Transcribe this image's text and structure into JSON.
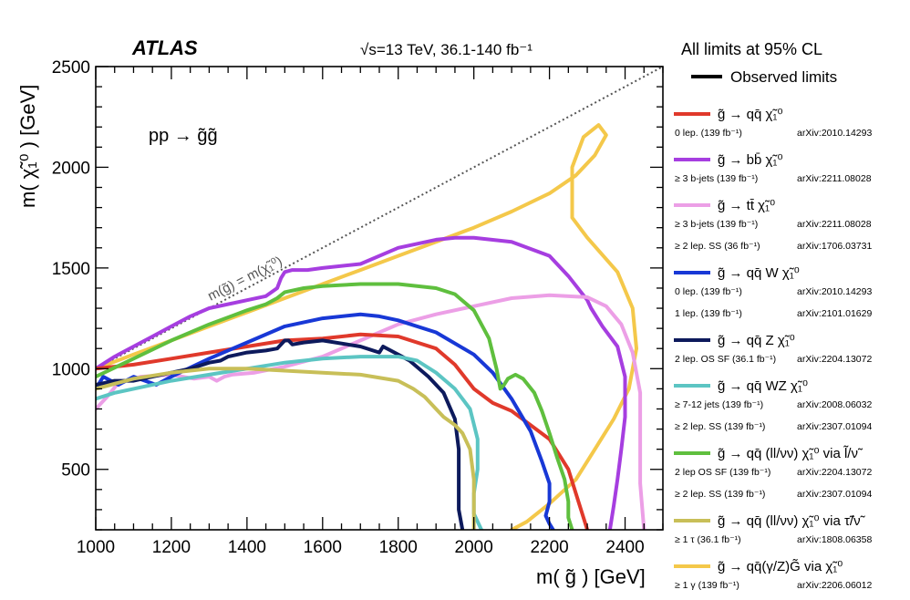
{
  "chart_data": {
    "type": "line",
    "title": "ATLAS",
    "subtitle": "√s=13 TeV, 36.1-140 fb⁻¹",
    "cl_note": "All limits at 95% CL",
    "observed_label": "Observed limits",
    "process_label": "pp → g̃g̃",
    "diagonal_label": "m(g̃) = m(χ̃₁⁰)",
    "xlabel": "m( g̃ ) [GeV]",
    "ylabel": "m( χ̃₁⁰ ) [GeV]",
    "xlim": [
      1000,
      2500
    ],
    "ylim": [
      200,
      2500
    ],
    "x_ticks": [
      1000,
      1200,
      1400,
      1600,
      1800,
      2000,
      2200,
      2400
    ],
    "y_ticks": [
      500,
      1000,
      1500,
      2000,
      2500
    ],
    "legend": [
      {
        "name": "g̃ → qq̄ χ̃₁⁰",
        "color": "#e0392b",
        "notes": [
          {
            "left": "0 lep. (139 fb⁻¹)",
            "right": "arXiv:2010.14293"
          }
        ]
      },
      {
        "name": "g̃ → bb̄ χ̃₁⁰",
        "color": "#a63ee0",
        "notes": [
          {
            "left": "≥ 3 b-jets (139 fb⁻¹)",
            "right": "arXiv:2211.08028"
          }
        ]
      },
      {
        "name": "g̃ → tt̄ χ̃₁⁰",
        "color": "#ec9fe6",
        "notes": [
          {
            "left": "≥ 3 b-jets (139 fb⁻¹)",
            "right": "arXiv:2211.08028"
          },
          {
            "left": "≥ 2 lep. SS (36 fb⁻¹)",
            "right": "arXiv:1706.03731"
          }
        ]
      },
      {
        "name": "g̃ → qq̄ W χ̃₁⁰",
        "color": "#1838d6",
        "notes": [
          {
            "left": "0 lep. (139 fb⁻¹)",
            "right": "arXiv:2010.14293"
          },
          {
            "left": "1 lep. (139 fb⁻¹)",
            "right": "arXiv:2101.01629"
          }
        ]
      },
      {
        "name": "g̃ → qq̄ Z χ̃₁⁰",
        "color": "#0d1a5c",
        "notes": [
          {
            "left": "2 lep. OS SF (36.1 fb⁻¹)",
            "right": "arXiv:2204.13072"
          }
        ]
      },
      {
        "name": "g̃ → qq̄ WZ χ̃₁⁰",
        "color": "#5cc5c3",
        "notes": [
          {
            "left": "≥ 7-12 jets (139 fb⁻¹)",
            "right": "arXiv:2008.06032"
          },
          {
            "left": "≥ 2 lep. SS (139 fb⁻¹)",
            "right": "arXiv:2307.01094"
          }
        ]
      },
      {
        "name": "g̃ → qq̄ (ll/νν) χ̃₁⁰ via l̃/ν̃",
        "color": "#5fbf3e",
        "notes": [
          {
            "left": "2 lep OS SF (139 fb⁻¹)",
            "right": "arXiv:2204.13072"
          },
          {
            "left": "≥ 2 lep. SS (139 fb⁻¹)",
            "right": "arXiv:2307.01094"
          }
        ]
      },
      {
        "name": "g̃ → qq̄ (ll/νν) χ̃₁⁰ via τ̃/ν̃",
        "color": "#c8bf58",
        "notes": [
          {
            "left": "≥ 1 τ (36.1 fb⁻¹)",
            "right": "arXiv:1808.06358"
          }
        ]
      },
      {
        "name": "g̃ → qq̄(γ/Z)G̃ via χ̃₁⁰",
        "color": "#f4c84a",
        "notes": [
          {
            "left": "≥ 1 γ (139 fb⁻¹)",
            "right": "arXiv:2206.06012"
          }
        ]
      }
    ],
    "series": [
      {
        "name": "yellow",
        "color": "#f4c84a",
        "x": [
          1000,
          1100,
          1200,
          1300,
          1400,
          1500,
          1600,
          1700,
          1800,
          1900,
          2000,
          2100,
          2200,
          2270,
          2320,
          2350,
          2330,
          2290,
          2260,
          2260,
          2300,
          2380,
          2420,
          2430,
          2410,
          2370,
          2320,
          2270,
          2200,
          2140,
          2100
        ],
        "y": [
          1000,
          1070,
          1140,
          1210,
          1280,
          1350,
          1420,
          1490,
          1560,
          1630,
          1700,
          1780,
          1870,
          1960,
          2060,
          2160,
          2210,
          2150,
          2000,
          1750,
          1650,
          1480,
          1300,
          1100,
          900,
          750,
          600,
          450,
          330,
          240,
          200
        ]
      },
      {
        "name": "purple",
        "color": "#a63ee0",
        "x": [
          1000,
          1050,
          1100,
          1150,
          1200,
          1250,
          1300,
          1400,
          1450,
          1480,
          1490,
          1500,
          1520,
          1560,
          1600,
          1700,
          1800,
          1900,
          1950,
          2000,
          2100,
          2200,
          2250,
          2300,
          2310,
          2340,
          2380,
          2400,
          2400,
          2390,
          2380,
          2370,
          2360
        ],
        "y": [
          1000,
          1060,
          1110,
          1160,
          1210,
          1260,
          1300,
          1340,
          1360,
          1400,
          1450,
          1480,
          1490,
          1490,
          1500,
          1520,
          1600,
          1640,
          1650,
          1650,
          1630,
          1560,
          1460,
          1340,
          1300,
          1210,
          1110,
          960,
          760,
          600,
          450,
          320,
          200
        ]
      },
      {
        "name": "pink",
        "color": "#ec9fe6",
        "x": [
          1000,
          1030,
          1060,
          1120,
          1200,
          1260,
          1300,
          1320,
          1340,
          1360,
          1420,
          1500,
          1600,
          1700,
          1800,
          1900,
          2000,
          2100,
          2200,
          2300,
          2350,
          2390,
          2420,
          2440,
          2440,
          2440,
          2450
        ],
        "y": [
          800,
          860,
          930,
          960,
          970,
          950,
          960,
          940,
          960,
          970,
          980,
          1010,
          1060,
          1140,
          1220,
          1270,
          1310,
          1350,
          1365,
          1355,
          1310,
          1220,
          1080,
          880,
          650,
          430,
          200
        ]
      },
      {
        "name": "red",
        "color": "#e0392b",
        "x": [
          1000,
          1100,
          1200,
          1300,
          1400,
          1500,
          1600,
          1700,
          1800,
          1900,
          1950,
          2000,
          2050,
          2100,
          2200,
          2250,
          2300
        ],
        "y": [
          1000,
          1020,
          1050,
          1080,
          1110,
          1140,
          1150,
          1170,
          1160,
          1100,
          1020,
          900,
          830,
          790,
          650,
          500,
          200
        ]
      },
      {
        "name": "blue",
        "color": "#1838d6",
        "x": [
          1000,
          1020,
          1060,
          1100,
          1160,
          1200,
          1300,
          1400,
          1500,
          1600,
          1700,
          1750,
          1800,
          1900,
          2000,
          2050,
          2100,
          2150,
          2180,
          2200,
          2200,
          2190,
          2200,
          2210
        ],
        "y": [
          900,
          960,
          920,
          960,
          920,
          960,
          1050,
          1130,
          1210,
          1250,
          1270,
          1260,
          1240,
          1180,
          1070,
          980,
          850,
          690,
          540,
          430,
          340,
          270,
          230,
          200
        ]
      },
      {
        "name": "navy",
        "color": "#0d1a5c",
        "x": [
          1000,
          1050,
          1100,
          1150,
          1200,
          1250,
          1300,
          1330,
          1350,
          1400,
          1450,
          1480,
          1500,
          1510,
          1520,
          1550,
          1600,
          1700,
          1750,
          1760,
          1780,
          1800,
          1830,
          1880,
          1920,
          1950,
          1960,
          1960,
          1960,
          1970
        ],
        "y": [
          920,
          940,
          940,
          960,
          980,
          1000,
          1030,
          1040,
          1060,
          1080,
          1090,
          1100,
          1140,
          1140,
          1120,
          1130,
          1140,
          1110,
          1080,
          1110,
          1090,
          1070,
          1040,
          960,
          880,
          750,
          600,
          450,
          300,
          200
        ]
      },
      {
        "name": "teal",
        "color": "#5cc5c3",
        "x": [
          1000,
          1050,
          1100,
          1200,
          1300,
          1400,
          1500,
          1600,
          1700,
          1800,
          1850,
          1900,
          1950,
          1990,
          2010,
          2010,
          2000,
          2000,
          2020
        ],
        "y": [
          850,
          880,
          900,
          940,
          970,
          1000,
          1030,
          1050,
          1060,
          1060,
          1040,
          980,
          900,
          800,
          650,
          500,
          380,
          280,
          200
        ]
      },
      {
        "name": "green",
        "color": "#5fbf3e",
        "x": [
          1000,
          1100,
          1200,
          1300,
          1400,
          1450,
          1480,
          1500,
          1550,
          1600,
          1700,
          1800,
          1900,
          1950,
          2000,
          2040,
          2060,
          2070,
          2080,
          2090,
          2110,
          2130,
          2160,
          2180,
          2200,
          2220,
          2240,
          2250,
          2250,
          2260
        ],
        "y": [
          960,
          1050,
          1140,
          1220,
          1290,
          1320,
          1350,
          1380,
          1400,
          1410,
          1420,
          1420,
          1400,
          1370,
          1290,
          1150,
          1000,
          900,
          920,
          950,
          970,
          950,
          880,
          790,
          680,
          560,
          450,
          340,
          260,
          200
        ]
      },
      {
        "name": "olive",
        "color": "#c8bf58",
        "x": [
          1000,
          1100,
          1200,
          1300,
          1400,
          1500,
          1600,
          1700,
          1800,
          1840,
          1870,
          1900,
          1920,
          1950,
          1970,
          1990,
          2000,
          2000,
          2000
        ],
        "y": [
          900,
          950,
          980,
          1000,
          1000,
          990,
          980,
          970,
          940,
          900,
          860,
          800,
          760,
          720,
          680,
          600,
          450,
          320,
          200
        ]
      }
    ],
    "diagonal": {
      "x": [
        1000,
        2500
      ],
      "y": [
        1000,
        2500
      ]
    }
  }
}
